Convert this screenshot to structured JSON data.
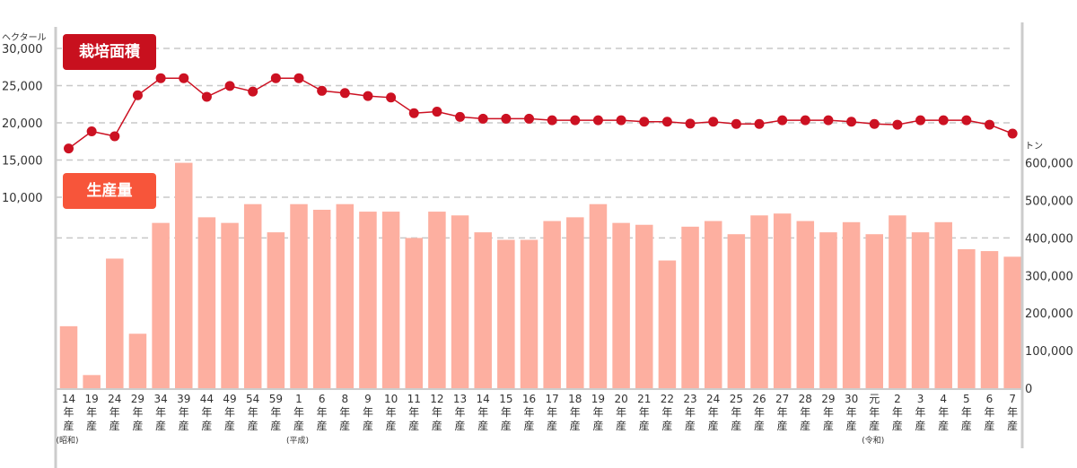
{
  "chart_data": {
    "type": "bar+line",
    "left_axis": {
      "unit": "ヘクタール",
      "range": [
        0,
        30000
      ],
      "tick_labels": [
        "30,000",
        "25,000",
        "20,000",
        "15,000",
        "10,000"
      ]
    },
    "right_axis": {
      "unit": "トン",
      "range": [
        0,
        600000
      ],
      "tick_labels": [
        "600,000",
        "500,000",
        "400,000",
        "300,000",
        "200,000",
        "100,000",
        "0"
      ]
    },
    "grid": true,
    "categories": [
      "14",
      "19",
      "24",
      "29",
      "34",
      "39",
      "44",
      "49",
      "54",
      "59",
      "1",
      "6",
      "8",
      "9",
      "10",
      "11",
      "12",
      "13",
      "14",
      "15",
      "16",
      "17",
      "18",
      "19",
      "20",
      "21",
      "22",
      "23",
      "24",
      "25",
      "26",
      "27",
      "28",
      "29",
      "30",
      "元",
      "2",
      "3",
      "4",
      "5",
      "6",
      "7"
    ],
    "category_suffix": [
      "年",
      "産"
    ],
    "eras": [
      {
        "label": "(昭和)",
        "index": 0
      },
      {
        "label": "(平成)",
        "index": 10
      },
      {
        "label": "(令和)",
        "index": 35
      }
    ],
    "series": [
      {
        "name": "栽培面積",
        "type": "line",
        "axis": "left",
        "color": "#cc1122",
        "values": [
          16550,
          18850,
          18200,
          23700,
          26000,
          26000,
          23500,
          24950,
          24200,
          26000,
          26000,
          24300,
          24000,
          23600,
          23400,
          21300,
          21500,
          20800,
          20550,
          20550,
          20550,
          20350,
          20350,
          20350,
          20350,
          20150,
          20150,
          19900,
          20150,
          19850,
          19850,
          20350,
          20350,
          20350,
          20150,
          19850,
          19750,
          20350,
          20350,
          20350,
          19750,
          18550
        ]
      },
      {
        "name": "生産量",
        "type": "bar",
        "axis": "right",
        "color": "#fdafa0",
        "values": [
          165000,
          35000,
          345000,
          145000,
          440000,
          600000,
          455000,
          440000,
          490000,
          415000,
          490000,
          475000,
          490000,
          470000,
          470000,
          400000,
          470000,
          460000,
          415000,
          395000,
          395000,
          445000,
          455000,
          490000,
          440000,
          435000,
          340000,
          430000,
          445000,
          410000,
          460000,
          465000,
          445000,
          415000,
          442000,
          410000,
          460000,
          415000,
          442000,
          370000,
          365000,
          350000
        ]
      }
    ]
  },
  "colors": {
    "area_badge": "#c8101e",
    "prod_badge": "#f7553a",
    "grid": "#c8c8c8",
    "axis": "#cccccc"
  }
}
